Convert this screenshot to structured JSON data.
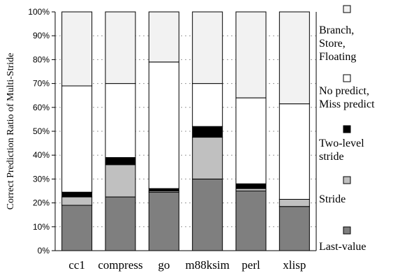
{
  "chart_data": {
    "type": "bar",
    "stacked": true,
    "ylabel": "Correct Prediction Ratio of Multi-Stride",
    "xlabel": "",
    "ylim": [
      0,
      100
    ],
    "yticks": [
      "0%",
      "10%",
      "20%",
      "30%",
      "40%",
      "50%",
      "60%",
      "70%",
      "80%",
      "90%",
      "100%"
    ],
    "grid": "horizontal-dotted",
    "legend_position": "right",
    "categories": [
      "cc1",
      "compress",
      "go",
      "m88ksim",
      "perl",
      "xlisp"
    ],
    "series": [
      {
        "name": "Last-value",
        "color": "#7f7f7f",
        "values": [
          19,
          22.5,
          24.5,
          30,
          25,
          18.5
        ]
      },
      {
        "name": "Stride",
        "color": "#c0c0c0",
        "values": [
          3.5,
          13.5,
          0.5,
          17.5,
          1,
          3
        ]
      },
      {
        "name": "Two-level stride",
        "color": "#000000",
        "values": [
          2,
          3,
          1,
          4.5,
          2,
          0
        ]
      },
      {
        "name": "No predict, Miss predict",
        "color": "#ffffff",
        "values": [
          44.5,
          31,
          53,
          18,
          36,
          40
        ]
      },
      {
        "name": "Branch, Store, Floating",
        "color": "#f2f2f2",
        "values": [
          31,
          30,
          21,
          30,
          36,
          38.5
        ]
      }
    ],
    "legend": [
      {
        "series": 4,
        "lines": [
          "Branch,",
          "Store,",
          "Floating"
        ]
      },
      {
        "series": 3,
        "lines": [
          "No predict,",
          "Miss predict"
        ]
      },
      {
        "series": 2,
        "lines": [
          "Two-level",
          " stride"
        ]
      },
      {
        "series": 1,
        "lines": [
          "Stride"
        ]
      },
      {
        "series": 0,
        "lines": [
          "Last-value"
        ]
      }
    ]
  }
}
